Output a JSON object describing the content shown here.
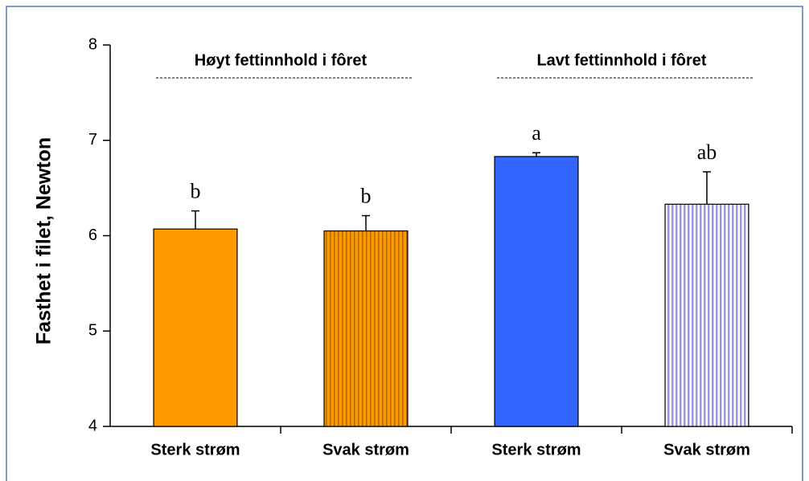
{
  "chart_data": {
    "type": "bar",
    "ylabel": "Fasthet i filet, Newton",
    "categories": [
      "Sterk strøm",
      "Svak strøm",
      "Sterk strøm",
      "Svak strøm"
    ],
    "values": [
      6.07,
      6.05,
      6.83,
      6.33
    ],
    "errors": [
      0.19,
      0.16,
      0.04,
      0.34
    ],
    "annotations": [
      "b",
      "b",
      "a",
      "ab"
    ],
    "groups": [
      "Høyt fettinnhold i fôret",
      "Lavt fettinnhold i fôret"
    ],
    "colors": [
      "#ff9900",
      "#ff9900",
      "#3366ff",
      "#aaaaee"
    ],
    "patterns": [
      "solid",
      "striped",
      "solid",
      "striped"
    ],
    "ylim": [
      4,
      8
    ],
    "yticks": [
      4,
      5,
      6,
      7,
      8
    ],
    "grid": false
  }
}
